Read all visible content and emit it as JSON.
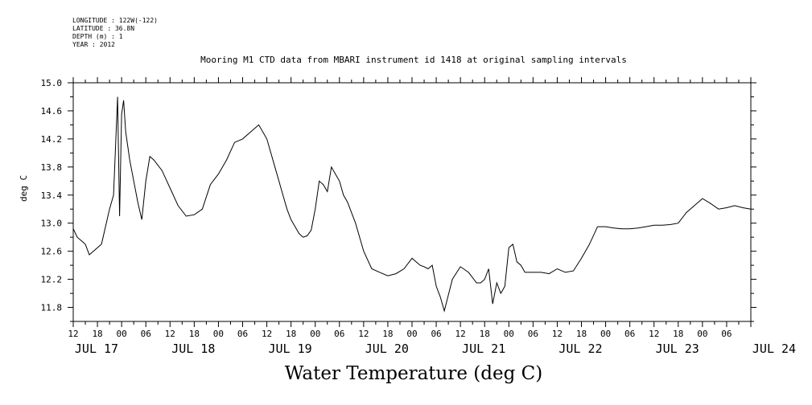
{
  "meta": {
    "longitude": "LONGITUDE : 122W(-122)",
    "latitude": "LATITUDE : 36.8N",
    "depth": "DEPTH (m) : 1",
    "year": "YEAR : 2012"
  },
  "chart_data": {
    "type": "line",
    "title": "Mooring M1 CTD data from MBARI instrument id 1418 at original sampling intervals",
    "xlabel": "Water Temperature (deg C)",
    "ylabel": "deg C",
    "ylim": [
      11.6,
      15.0
    ],
    "yticks": [
      "15.0",
      "14.6",
      "14.2",
      "13.8",
      "13.4",
      "13.0",
      "12.6",
      "12.2",
      "11.8"
    ],
    "xlim": [
      "2012-07-17 12:00",
      "2012-07-24 12:00"
    ],
    "x_hour_labels": [
      "12",
      "18",
      "00",
      "06",
      "12",
      "18",
      "00",
      "06",
      "12",
      "18",
      "00",
      "06",
      "12",
      "18",
      "00",
      "06",
      "12",
      "18",
      "00",
      "06",
      "12",
      "18",
      "00",
      "06",
      "12",
      "18",
      "00",
      "06"
    ],
    "x_day_labels": [
      "JUL 17",
      "JUL 18",
      "JUL 19",
      "JUL 20",
      "JUL 21",
      "JUL 22",
      "JUL 23",
      "JUL 24"
    ],
    "grid": false,
    "series": [
      {
        "x": [
          "07-17 12:00",
          "07-17 13:00",
          "07-17 14:00",
          "07-17 15:00",
          "07-17 16:00",
          "07-17 17:00",
          "07-17 18:00",
          "07-17 19:00",
          "07-17 20:00",
          "07-17 21:00",
          "07-17 22:00",
          "07-17 23:00",
          "07-17 23:30",
          "07-18 00:00",
          "07-18 00:30",
          "07-18 01:00",
          "07-18 02:00",
          "07-18 03:00",
          "07-18 04:00",
          "07-18 05:00",
          "07-18 06:00",
          "07-18 07:00",
          "07-18 08:00",
          "07-18 10:00",
          "07-18 12:00",
          "07-18 14:00",
          "07-18 16:00",
          "07-18 18:00",
          "07-18 20:00",
          "07-18 22:00",
          "07-19 00:00",
          "07-19 02:00",
          "07-19 04:00",
          "07-19 06:00",
          "07-19 08:00",
          "07-19 10:00",
          "07-19 12:00",
          "07-19 14:00",
          "07-19 16:00",
          "07-19 17:00",
          "07-19 18:00",
          "07-19 19:00",
          "07-19 20:00",
          "07-19 21:00",
          "07-19 22:00",
          "07-19 23:00",
          "07-20 00:00",
          "07-20 01:00",
          "07-20 02:00",
          "07-20 03:00",
          "07-20 04:00",
          "07-20 05:00",
          "07-20 06:00",
          "07-20 07:00",
          "07-20 08:00",
          "07-20 10:00",
          "07-20 12:00",
          "07-20 14:00",
          "07-20 16:00",
          "07-20 18:00",
          "07-20 20:00",
          "07-20 22:00",
          "07-21 00:00",
          "07-21 01:00",
          "07-21 02:00",
          "07-21 03:00",
          "07-21 04:00",
          "07-21 05:00",
          "07-21 06:00",
          "07-21 07:00",
          "07-21 08:00",
          "07-21 10:00",
          "07-21 12:00",
          "07-21 14:00",
          "07-21 16:00",
          "07-21 17:00",
          "07-21 18:00",
          "07-21 19:00",
          "07-21 20:00",
          "07-21 21:00",
          "07-21 22:00",
          "07-21 23:00",
          "07-22 00:00",
          "07-22 01:00",
          "07-22 02:00",
          "07-22 03:00",
          "07-22 04:00",
          "07-22 06:00",
          "07-22 08:00",
          "07-22 10:00",
          "07-22 12:00",
          "07-22 14:00",
          "07-22 16:00",
          "07-22 18:00",
          "07-22 20:00",
          "07-22 22:00",
          "07-23 00:00",
          "07-23 02:00",
          "07-23 04:00",
          "07-23 06:00",
          "07-23 08:00",
          "07-23 10:00",
          "07-23 12:00",
          "07-23 14:00",
          "07-23 16:00",
          "07-23 18:00",
          "07-23 20:00",
          "07-23 22:00",
          "07-24 00:00",
          "07-24 02:00",
          "07-24 04:00",
          "07-24 06:00",
          "07-24 08:00",
          "07-24 10:00",
          "07-24 12:00"
        ],
        "values": [
          12.92,
          12.8,
          12.75,
          12.7,
          12.55,
          12.6,
          12.65,
          12.7,
          12.95,
          13.2,
          13.4,
          14.8,
          13.1,
          14.55,
          14.75,
          14.3,
          13.9,
          13.6,
          13.3,
          13.05,
          13.6,
          13.95,
          13.9,
          13.75,
          13.5,
          13.25,
          13.1,
          13.12,
          13.2,
          13.55,
          13.7,
          13.9,
          14.15,
          14.2,
          14.3,
          14.4,
          14.2,
          13.8,
          13.4,
          13.2,
          13.05,
          12.95,
          12.85,
          12.8,
          12.82,
          12.9,
          13.2,
          13.6,
          13.55,
          13.45,
          13.8,
          13.7,
          13.6,
          13.4,
          13.3,
          13.0,
          12.6,
          12.35,
          12.3,
          12.25,
          12.28,
          12.35,
          12.5,
          12.45,
          12.4,
          12.38,
          12.35,
          12.4,
          12.1,
          11.95,
          11.75,
          12.2,
          12.38,
          12.3,
          12.15,
          12.15,
          12.2,
          12.35,
          11.85,
          12.15,
          12.0,
          12.1,
          12.65,
          12.7,
          12.45,
          12.4,
          12.3,
          12.3,
          12.3,
          12.28,
          12.35,
          12.3,
          12.32,
          12.5,
          12.7,
          12.95,
          12.95,
          12.93,
          12.92,
          12.92,
          12.93,
          12.95,
          12.97,
          12.97,
          12.98,
          13.0,
          13.15,
          13.25,
          13.35,
          13.28,
          13.2,
          13.22,
          13.25,
          13.22,
          13.2
        ]
      }
    ]
  }
}
